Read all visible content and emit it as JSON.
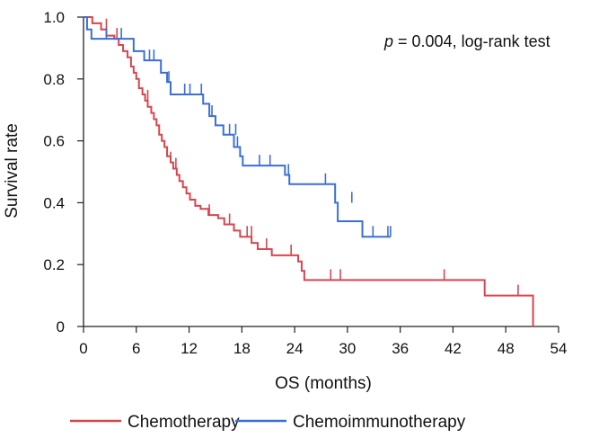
{
  "chart_data": {
    "type": "line",
    "subtype": "kaplan-meier-step",
    "title": "",
    "xlabel": "OS (months)",
    "ylabel": "Survival rate",
    "xlim": [
      0,
      54
    ],
    "ylim": [
      0,
      1.0
    ],
    "x_ticks": [
      0,
      6,
      12,
      18,
      24,
      30,
      36,
      42,
      48,
      54
    ],
    "y_ticks": [
      0,
      0.2,
      0.4,
      0.6,
      0.8,
      1.0
    ],
    "y_tick_labels": [
      "0",
      "0.2",
      "0.4",
      "0.6",
      "0.8",
      "1.0"
    ],
    "annotation": {
      "italic": "p",
      "text": " = 0.004, log-rank test"
    },
    "legend_position": "bottom",
    "series": [
      {
        "name": "Chemotherapy",
        "color": "#d9454f",
        "steps": [
          [
            0,
            1.0
          ],
          [
            1.0,
            0.98
          ],
          [
            2.0,
            0.96
          ],
          [
            2.6,
            0.94
          ],
          [
            3.5,
            0.93
          ],
          [
            4.0,
            0.91
          ],
          [
            4.5,
            0.89
          ],
          [
            5.0,
            0.87
          ],
          [
            5.4,
            0.84
          ],
          [
            5.7,
            0.82
          ],
          [
            6.0,
            0.8
          ],
          [
            6.3,
            0.77
          ],
          [
            6.7,
            0.75
          ],
          [
            7.0,
            0.73
          ],
          [
            7.3,
            0.71
          ],
          [
            7.7,
            0.69
          ],
          [
            8.0,
            0.67
          ],
          [
            8.3,
            0.65
          ],
          [
            8.6,
            0.62
          ],
          [
            8.9,
            0.6
          ],
          [
            9.2,
            0.58
          ],
          [
            9.5,
            0.55
          ],
          [
            9.9,
            0.53
          ],
          [
            10.2,
            0.51
          ],
          [
            10.6,
            0.49
          ],
          [
            10.9,
            0.47
          ],
          [
            11.3,
            0.45
          ],
          [
            11.7,
            0.43
          ],
          [
            12.1,
            0.41
          ],
          [
            12.7,
            0.39
          ],
          [
            13.3,
            0.38
          ],
          [
            14.2,
            0.36
          ],
          [
            15.3,
            0.35
          ],
          [
            16.0,
            0.33
          ],
          [
            17.1,
            0.31
          ],
          [
            17.8,
            0.29
          ],
          [
            19.1,
            0.27
          ],
          [
            19.8,
            0.25
          ],
          [
            21.4,
            0.23
          ],
          [
            24.4,
            0.21
          ],
          [
            24.8,
            0.18
          ],
          [
            25.1,
            0.15
          ],
          [
            45.6,
            0.1
          ],
          [
            51.1,
            0.0
          ]
        ],
        "censored": [
          [
            2.6,
            0.96
          ],
          [
            3.8,
            0.93
          ],
          [
            7.3,
            0.73
          ],
          [
            9.9,
            0.53
          ],
          [
            10.5,
            0.51
          ],
          [
            14.3,
            0.36
          ],
          [
            16.6,
            0.33
          ],
          [
            18.6,
            0.29
          ],
          [
            19.1,
            0.29
          ],
          [
            20.8,
            0.25
          ],
          [
            23.6,
            0.23
          ],
          [
            28.1,
            0.15
          ],
          [
            29.2,
            0.15
          ],
          [
            41.0,
            0.15
          ],
          [
            49.4,
            0.1
          ]
        ]
      },
      {
        "name": "Chemoimmunotherapy",
        "color": "#3a6fd8",
        "steps": [
          [
            0,
            1.0
          ],
          [
            0.4,
            0.96
          ],
          [
            0.9,
            0.93
          ],
          [
            5.7,
            0.89
          ],
          [
            6.9,
            0.86
          ],
          [
            8.8,
            0.82
          ],
          [
            9.5,
            0.79
          ],
          [
            9.9,
            0.75
          ],
          [
            13.6,
            0.72
          ],
          [
            14.3,
            0.68
          ],
          [
            15.0,
            0.65
          ],
          [
            15.9,
            0.62
          ],
          [
            17.1,
            0.58
          ],
          [
            17.8,
            0.55
          ],
          [
            18.1,
            0.52
          ],
          [
            22.9,
            0.49
          ],
          [
            23.4,
            0.46
          ],
          [
            28.6,
            0.4
          ],
          [
            28.9,
            0.34
          ],
          [
            31.7,
            0.29
          ],
          [
            34.9,
            0.29
          ]
        ],
        "censored": [
          [
            2.6,
            0.93
          ],
          [
            4.3,
            0.93
          ],
          [
            7.5,
            0.86
          ],
          [
            8.0,
            0.86
          ],
          [
            9.7,
            0.79
          ],
          [
            11.5,
            0.75
          ],
          [
            12.1,
            0.75
          ],
          [
            13.4,
            0.75
          ],
          [
            14.6,
            0.68
          ],
          [
            16.6,
            0.62
          ],
          [
            17.3,
            0.62
          ],
          [
            17.5,
            0.58
          ],
          [
            20.0,
            0.52
          ],
          [
            21.2,
            0.52
          ],
          [
            23.3,
            0.49
          ],
          [
            27.5,
            0.46
          ],
          [
            30.5,
            0.4
          ],
          [
            32.9,
            0.29
          ],
          [
            34.6,
            0.29
          ],
          [
            34.9,
            0.29
          ]
        ]
      }
    ]
  }
}
